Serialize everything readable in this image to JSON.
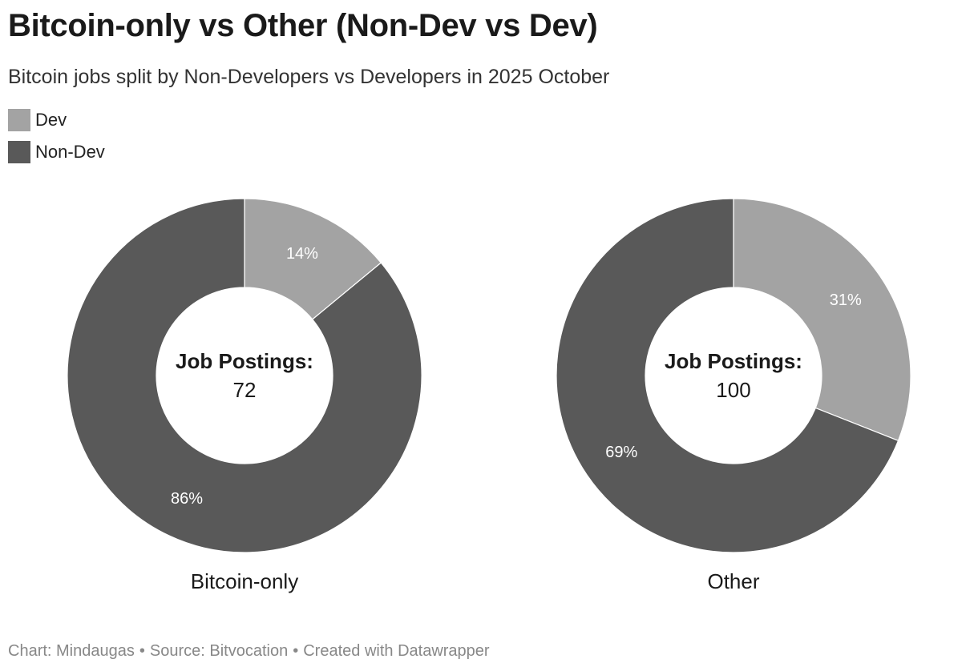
{
  "header": {
    "title": "Bitcoin-only vs Other (Non-Dev vs Dev)",
    "subtitle": "Bitcoin jobs split by Non-Developers vs Developers in 2025 October"
  },
  "legend": [
    {
      "label": "Dev",
      "color": "#a3a3a3"
    },
    {
      "label": "Non-Dev",
      "color": "#595959"
    }
  ],
  "chart_data": [
    {
      "type": "pie",
      "variant": "donut",
      "label": "Bitcoin-only",
      "center_label": "Job Postings:",
      "center_value": "72",
      "slices": [
        {
          "name": "Dev",
          "value": 14,
          "label": "14%",
          "color": "#a3a3a3"
        },
        {
          "name": "Non-Dev",
          "value": 86,
          "label": "86%",
          "color": "#595959"
        }
      ]
    },
    {
      "type": "pie",
      "variant": "donut",
      "label": "Other",
      "center_label": "Job Postings:",
      "center_value": "100",
      "slices": [
        {
          "name": "Dev",
          "value": 31,
          "label": "31%",
          "color": "#a3a3a3"
        },
        {
          "name": "Non-Dev",
          "value": 69,
          "label": "69%",
          "color": "#595959"
        }
      ]
    }
  ],
  "footer": {
    "credit": "Chart: Mindaugas",
    "source": "Source: Bitvocation",
    "tool": "Created with Datawrapper",
    "separator": "•"
  }
}
